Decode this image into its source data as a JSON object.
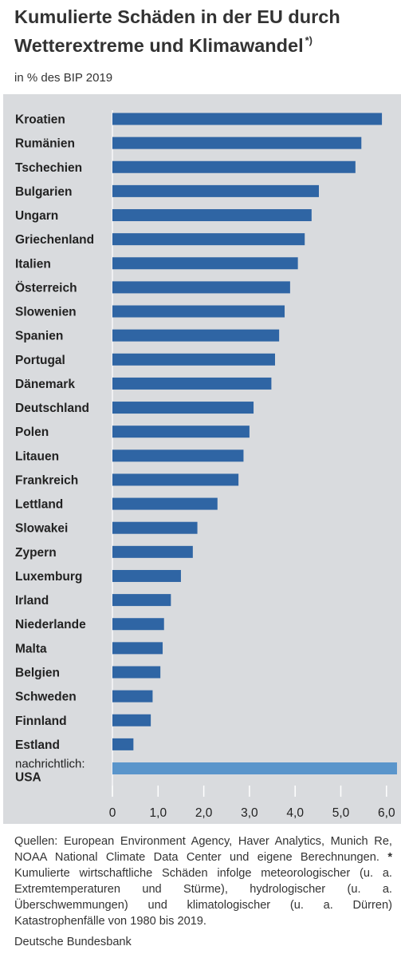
{
  "title": {
    "line1": "Kumulierte Schäden in der EU durch",
    "line2": "Wetterextreme und Klimawandel",
    "marker": "*)"
  },
  "subtitle": "in % des BIP 2019",
  "colors": {
    "bar": "#2f65a4",
    "bar_highlight": "#5a95cb",
    "panel": "#d9dbde"
  },
  "chart_data": {
    "type": "bar",
    "orientation": "horizontal",
    "categories": [
      "Kroatien",
      "Rumänien",
      "Tschechien",
      "Bulgarien",
      "Ungarn",
      "Griechenland",
      "Italien",
      "Österreich",
      "Slowenien",
      "Spanien",
      "Portugal",
      "Dänemark",
      "Deutschland",
      "Polen",
      "Litauen",
      "Frankreich",
      "Lettland",
      "Slowakei",
      "Zypern",
      "Luxemburg",
      "Irland",
      "Niederlande",
      "Malta",
      "Belgien",
      "Schweden",
      "Finnland",
      "Estland",
      "USA"
    ],
    "values": [
      5.9,
      5.45,
      5.32,
      4.52,
      4.36,
      4.21,
      4.06,
      3.89,
      3.77,
      3.65,
      3.56,
      3.48,
      3.09,
      3.0,
      2.87,
      2.76,
      2.3,
      1.86,
      1.76,
      1.5,
      1.28,
      1.13,
      1.1,
      1.05,
      0.88,
      0.84,
      0.46,
      6.23
    ],
    "highlight": [
      false,
      false,
      false,
      false,
      false,
      false,
      false,
      false,
      false,
      false,
      false,
      false,
      false,
      false,
      false,
      false,
      false,
      false,
      false,
      false,
      false,
      false,
      false,
      false,
      false,
      false,
      false,
      true
    ],
    "note_prefix": "nachrichtlich:",
    "xlim": [
      0,
      6.25
    ],
    "xticks": [
      "0",
      "1,0",
      "2,0",
      "3,0",
      "4,0",
      "5,0",
      "6,0"
    ],
    "tick_values": [
      0,
      1,
      2,
      3,
      4,
      5,
      6
    ],
    "grid": false
  },
  "footer": {
    "text1": "Quellen: European Environment Agency, Haver Analytics, Munich Re, NOAA National Climate Data Center und eigene Berechnungen.",
    "star": "*",
    "text2": "Kumulierte wirtschaftliche Schäden infolge meteorologischer (u. a. Extremtemperaturen und Stürme), hydrologischer (u. a. Überschwemmungen) und klimatologischer (u. a. Dürren) Katastrophenfälle von 1980 bis 2019."
  },
  "source": "Deutsche Bundesbank"
}
